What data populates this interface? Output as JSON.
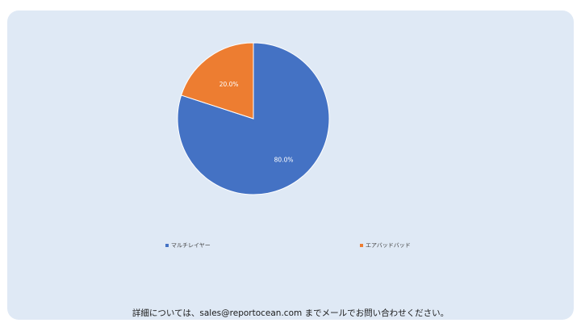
{
  "chart_data": {
    "type": "pie",
    "title": "",
    "slices": [
      {
        "name": "マルチレイヤー",
        "value": 80.0,
        "label": "80.0%",
        "color": "#4472c4"
      },
      {
        "name": "エアバッドバッド",
        "value": 20.0,
        "label": "20.0%",
        "color": "#ed7d31"
      }
    ],
    "legend_position": "bottom"
  },
  "footer": {
    "text": "詳細については、sales@reportocean.com までメールでお問い合わせください。"
  }
}
